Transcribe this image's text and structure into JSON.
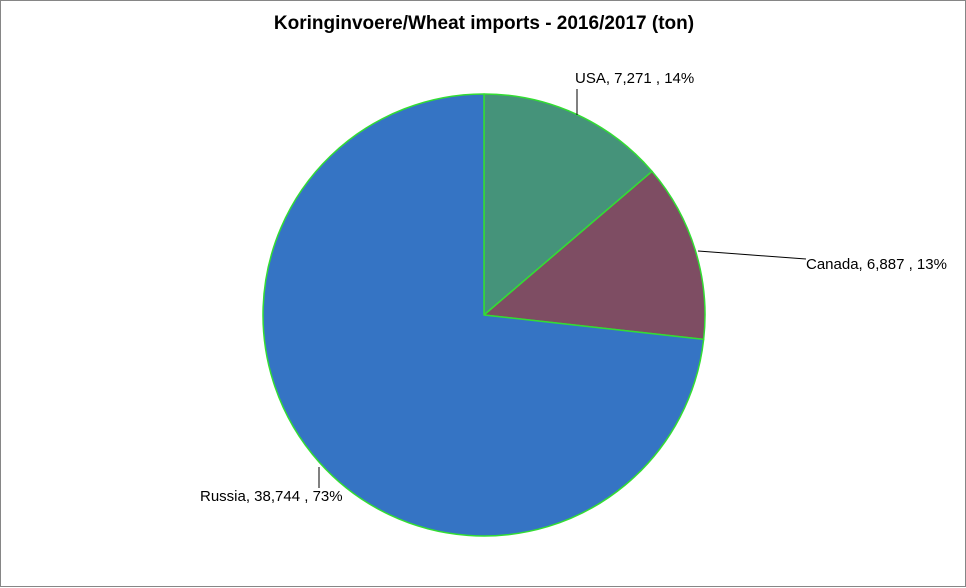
{
  "chart_data": {
    "type": "pie",
    "title": "Koringinvoere/Wheat imports - 2016/2017 (ton)",
    "slices": [
      {
        "name": "USA",
        "value": 7271,
        "value_text": "7,271",
        "percent": 14,
        "percent_text": "14%",
        "label": "USA,  7,271 , 14%",
        "color": "#45937A"
      },
      {
        "name": "Canada",
        "value": 6887,
        "value_text": "6,887",
        "percent": 13,
        "percent_text": "13%",
        "label": "Canada,  6,887 , 13%",
        "color": "#7E4D63"
      },
      {
        "name": "Russia",
        "value": 38744,
        "value_text": "38,744",
        "percent": 73,
        "percent_text": "73%",
        "label": "Russia,  38,744 , 73%",
        "color": "#3574C4"
      }
    ],
    "slice_border_color": "#33DD33",
    "start_angle": "12 o'clock",
    "direction": "clockwise",
    "legend": "none",
    "data_labels": "outside with leader lines"
  }
}
